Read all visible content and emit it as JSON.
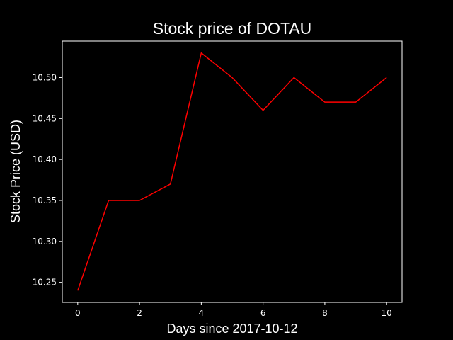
{
  "chart_data": {
    "type": "line",
    "title": "Stock price of DOTAU",
    "xlabel": "Days since 2017-10-12",
    "ylabel": "Stock Price (USD)",
    "x": [
      0,
      1,
      2,
      3,
      4,
      5,
      6,
      7,
      8,
      9,
      10
    ],
    "series": [
      {
        "values": [
          10.24,
          10.35,
          10.35,
          10.37,
          10.53,
          10.5,
          10.46,
          10.5,
          10.47,
          10.47,
          10.5
        ],
        "color": "#ff0000"
      }
    ],
    "xlim": [
      -0.5,
      10.5
    ],
    "ylim": [
      10.2255,
      10.5445
    ],
    "xticks": [
      0,
      2,
      4,
      6,
      8,
      10
    ],
    "yticks": [
      10.25,
      10.3,
      10.35,
      10.4,
      10.45,
      10.5
    ],
    "xtick_labels": [
      "0",
      "2",
      "4",
      "6",
      "8",
      "10"
    ],
    "ytick_labels": [
      "10.25",
      "10.30",
      "10.35",
      "10.40",
      "10.45",
      "10.50"
    ],
    "grid": false,
    "background": "#000000",
    "foreground": "#ffffff"
  }
}
